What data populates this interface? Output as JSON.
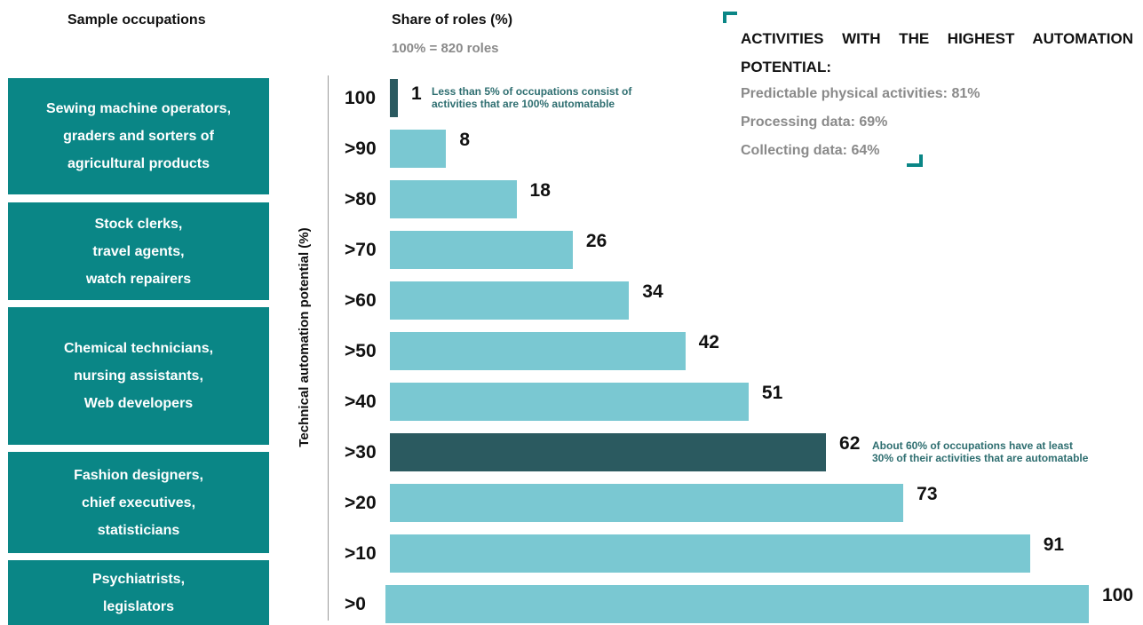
{
  "headers": {
    "occupations": "Sample occupations",
    "share": "Share of roles (%)",
    "share_sub": "100% = 820 roles"
  },
  "occupation_groups": [
    {
      "lines": [
        "Sewing machine operators,",
        "graders and sorters of",
        "agricultural products"
      ]
    },
    {
      "lines": [
        "Stock clerks,",
        "travel agents,",
        "watch repairers"
      ]
    },
    {
      "lines": [
        "Chemical technicians,",
        "nursing assistants,",
        "Web developers"
      ]
    },
    {
      "lines": [
        "Fashion designers,",
        "chief executives,",
        "statisticians"
      ]
    },
    {
      "lines": [
        "Psychiatrists,",
        "legislators"
      ]
    }
  ],
  "callout": {
    "title": "ACTIVITIES WITH THE HIGHEST AUTOMATION",
    "title_line2": "POTENTIAL:",
    "items": [
      "Predictable physical activities: 81%",
      "Processing data: 69%",
      "Collecting data: 64%"
    ]
  },
  "colors": {
    "teal_box": "#0a8686",
    "bar_light": "#7ac8d2",
    "bar_dark": "#2b5a60",
    "note_text": "#2e6e70"
  },
  "chart_data": {
    "type": "bar",
    "orientation": "horizontal",
    "ylabel": "Technical automation potential (%)",
    "xlabel": "Share of roles (%)",
    "categories": [
      "100",
      ">90",
      ">80",
      ">70",
      ">60",
      ">50",
      ">40",
      ">30",
      ">20",
      ">10",
      ">0"
    ],
    "values": [
      1,
      8,
      18,
      26,
      34,
      42,
      51,
      62,
      73,
      91,
      100
    ],
    "value_labels": [
      "1",
      "8",
      "18",
      "26",
      "34",
      "42",
      "51",
      "62",
      "73",
      "91",
      "100"
    ],
    "highlighted": [
      "100",
      ">30"
    ],
    "xlim": [
      0,
      100
    ],
    "grid": false,
    "annotations": [
      {
        "category": "100",
        "lines": [
          "Less than 5% of occupations consist of",
          "activities that are 100% automatable"
        ]
      },
      {
        "category": ">30",
        "lines": [
          "About 60% of occupations have at least",
          "30% of their activities that are automatable"
        ]
      }
    ]
  }
}
